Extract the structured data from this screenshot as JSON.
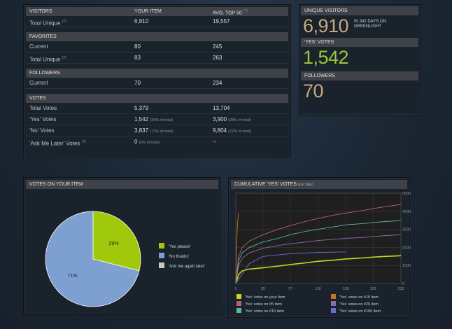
{
  "stats": {
    "visitors": {
      "header": [
        "VISITORS",
        "YOUR ITEM",
        "AVG. TOP 50"
      ],
      "header_sup": "(?)",
      "rows": [
        {
          "label": "Total Unique",
          "sup": "(?)",
          "yours": "6,910",
          "avg": "19,557"
        }
      ]
    },
    "favorites": {
      "header": "FAVORITES",
      "rows": [
        {
          "label": "Current",
          "sup": "",
          "yours": "80",
          "avg": "245"
        },
        {
          "label": "Total Unique",
          "sup": "(?)",
          "yours": "83",
          "avg": "263"
        }
      ]
    },
    "followers": {
      "header": "FOLLOWERS",
      "rows": [
        {
          "label": "Current",
          "sup": "",
          "yours": "70",
          "avg": "234"
        }
      ]
    },
    "votes": {
      "header": "VOTES",
      "rows": [
        {
          "label": "Total Votes",
          "sup": "",
          "yours": "5,379",
          "yours_pct": "",
          "avg": "13,704",
          "avg_pct": ""
        },
        {
          "label": "'Yes' Votes",
          "sup": "",
          "yours": "1,542",
          "yours_pct": "(29% of total)",
          "avg": "3,900",
          "avg_pct": "(28% of total)"
        },
        {
          "label": "'No' Votes",
          "sup": "",
          "yours": "3,837",
          "yours_pct": "(71% of total)",
          "avg": "9,804",
          "avg_pct": "(72% of total)"
        },
        {
          "label": "'Ask Me Later' Votes",
          "sup": "(?)",
          "yours": "0",
          "yours_pct": "(0% of total)",
          "avg": "--",
          "avg_pct": ""
        }
      ]
    }
  },
  "summary": {
    "unique_header": "UNIQUE VISITORS",
    "unique_value": "6,910",
    "unique_note": "IN 342 DAYS ON GREENLIGHT",
    "yes_header": "'YES' VOTES",
    "yes_value": "1,542",
    "followers_header": "FOLLOWERS",
    "followers_value": "70",
    "colors": {
      "unique": "#c7a77d",
      "yes": "#98c83b",
      "followers": "#c7a77d"
    }
  },
  "pie": {
    "title": "VOTES ON YOUR ITEM",
    "chart_data": {
      "type": "pie",
      "slices": [
        {
          "name": "'Yes please'",
          "value": 29,
          "label": "29%",
          "color": "#a1c90b"
        },
        {
          "name": "'No thanks'",
          "value": 71,
          "label": "71%",
          "color": "#7ea0d1"
        },
        {
          "name": "'Ask me again later'",
          "value": 0,
          "label": "",
          "color": "#c8c8c8"
        }
      ]
    }
  },
  "line": {
    "title": "CUMULATIVE 'YES' VOTES",
    "title_note": "(per day)",
    "chart_data": {
      "type": "line",
      "xlim": [
        1,
        232
      ],
      "ylim": [
        0,
        5000
      ],
      "x_ticks": [
        "1",
        "39",
        "77",
        "116",
        "155",
        "193",
        "232"
      ],
      "y_ticks": [
        "0",
        "1000",
        "2000",
        "3000",
        "4000",
        "5000"
      ],
      "series": [
        {
          "name": "'Yes' votes on your item",
          "color": "#c2d91c",
          "x": [
            1,
            5,
            10,
            20,
            39,
            60,
            77,
            100,
            116,
            140,
            155,
            180,
            193,
            210,
            232
          ],
          "y": [
            0,
            500,
            700,
            800,
            870,
            960,
            1050,
            1150,
            1230,
            1300,
            1360,
            1420,
            1460,
            1500,
            1540
          ]
        },
        {
          "name": "'Yes' votes on #5 item",
          "color": "#b8636a",
          "x": [
            1,
            5,
            10,
            20,
            39,
            60,
            77,
            100,
            116,
            140,
            155,
            180,
            193,
            210,
            232
          ],
          "y": [
            0,
            1500,
            2000,
            2350,
            2700,
            3000,
            3200,
            3450,
            3600,
            3800,
            3900,
            4050,
            4150,
            4250,
            4380
          ]
        },
        {
          "name": "'Yes' votes on #10 item",
          "color": "#5db4a3",
          "x": [
            1,
            5,
            10,
            20,
            39,
            60,
            77,
            100,
            116,
            140,
            155,
            180,
            193,
            210,
            232
          ],
          "y": [
            0,
            1300,
            1700,
            2000,
            2300,
            2500,
            2700,
            2900,
            3000,
            3150,
            3250,
            3320,
            3380,
            3430,
            3480
          ]
        },
        {
          "name": "'Yes' votes on #15 item",
          "color": "#c57521",
          "x": [
            1,
            2,
            3,
            4,
            5
          ],
          "y": [
            0,
            2000,
            3000,
            3600,
            3900
          ]
        },
        {
          "name": "'Yes' votes on #20 item",
          "color": "#8f6aa8",
          "x": [
            1,
            5,
            10,
            20,
            39,
            60,
            77,
            100,
            116,
            140,
            155,
            180,
            193,
            210,
            232
          ],
          "y": [
            0,
            1000,
            1400,
            1700,
            1950,
            2100,
            2200,
            2300,
            2380,
            2450,
            2500,
            2550,
            2600,
            2650,
            2700
          ]
        },
        {
          "name": "'Yes' votes on #100 item",
          "color": "#6a6ed4",
          "x": [
            1,
            20,
            39,
            77,
            116,
            155
          ],
          "y": [
            0,
            1100,
            1500,
            1650,
            1720,
            1750
          ]
        }
      ]
    }
  }
}
